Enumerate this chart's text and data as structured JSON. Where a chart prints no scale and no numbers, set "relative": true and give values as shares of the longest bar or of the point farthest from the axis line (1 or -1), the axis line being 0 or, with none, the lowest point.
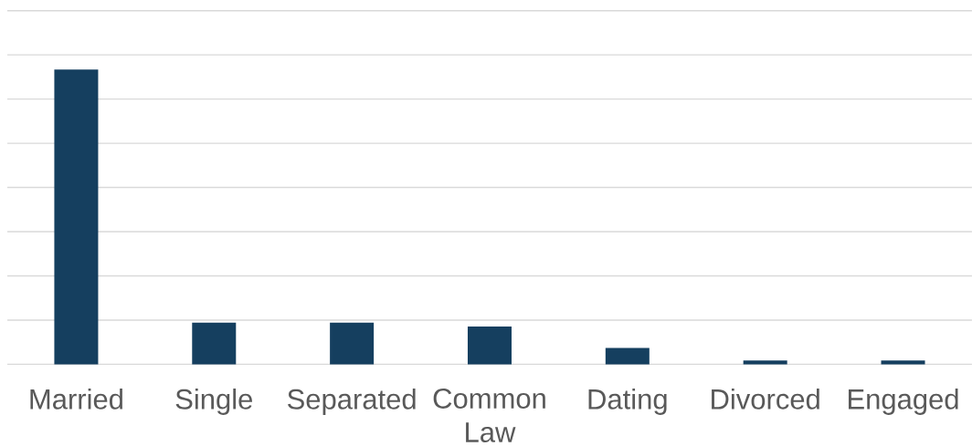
{
  "chart_data": {
    "type": "bar",
    "categories": [
      "Married",
      "Single",
      "Separated",
      "Common Law",
      "Dating",
      "Divorced",
      "Engaged"
    ],
    "values": [
      1,
      0.141,
      0.141,
      0.128,
      0.055,
      0.013,
      0.013
    ],
    "color": "#153f5f",
    "relative": true,
    "grid": "y"
  }
}
